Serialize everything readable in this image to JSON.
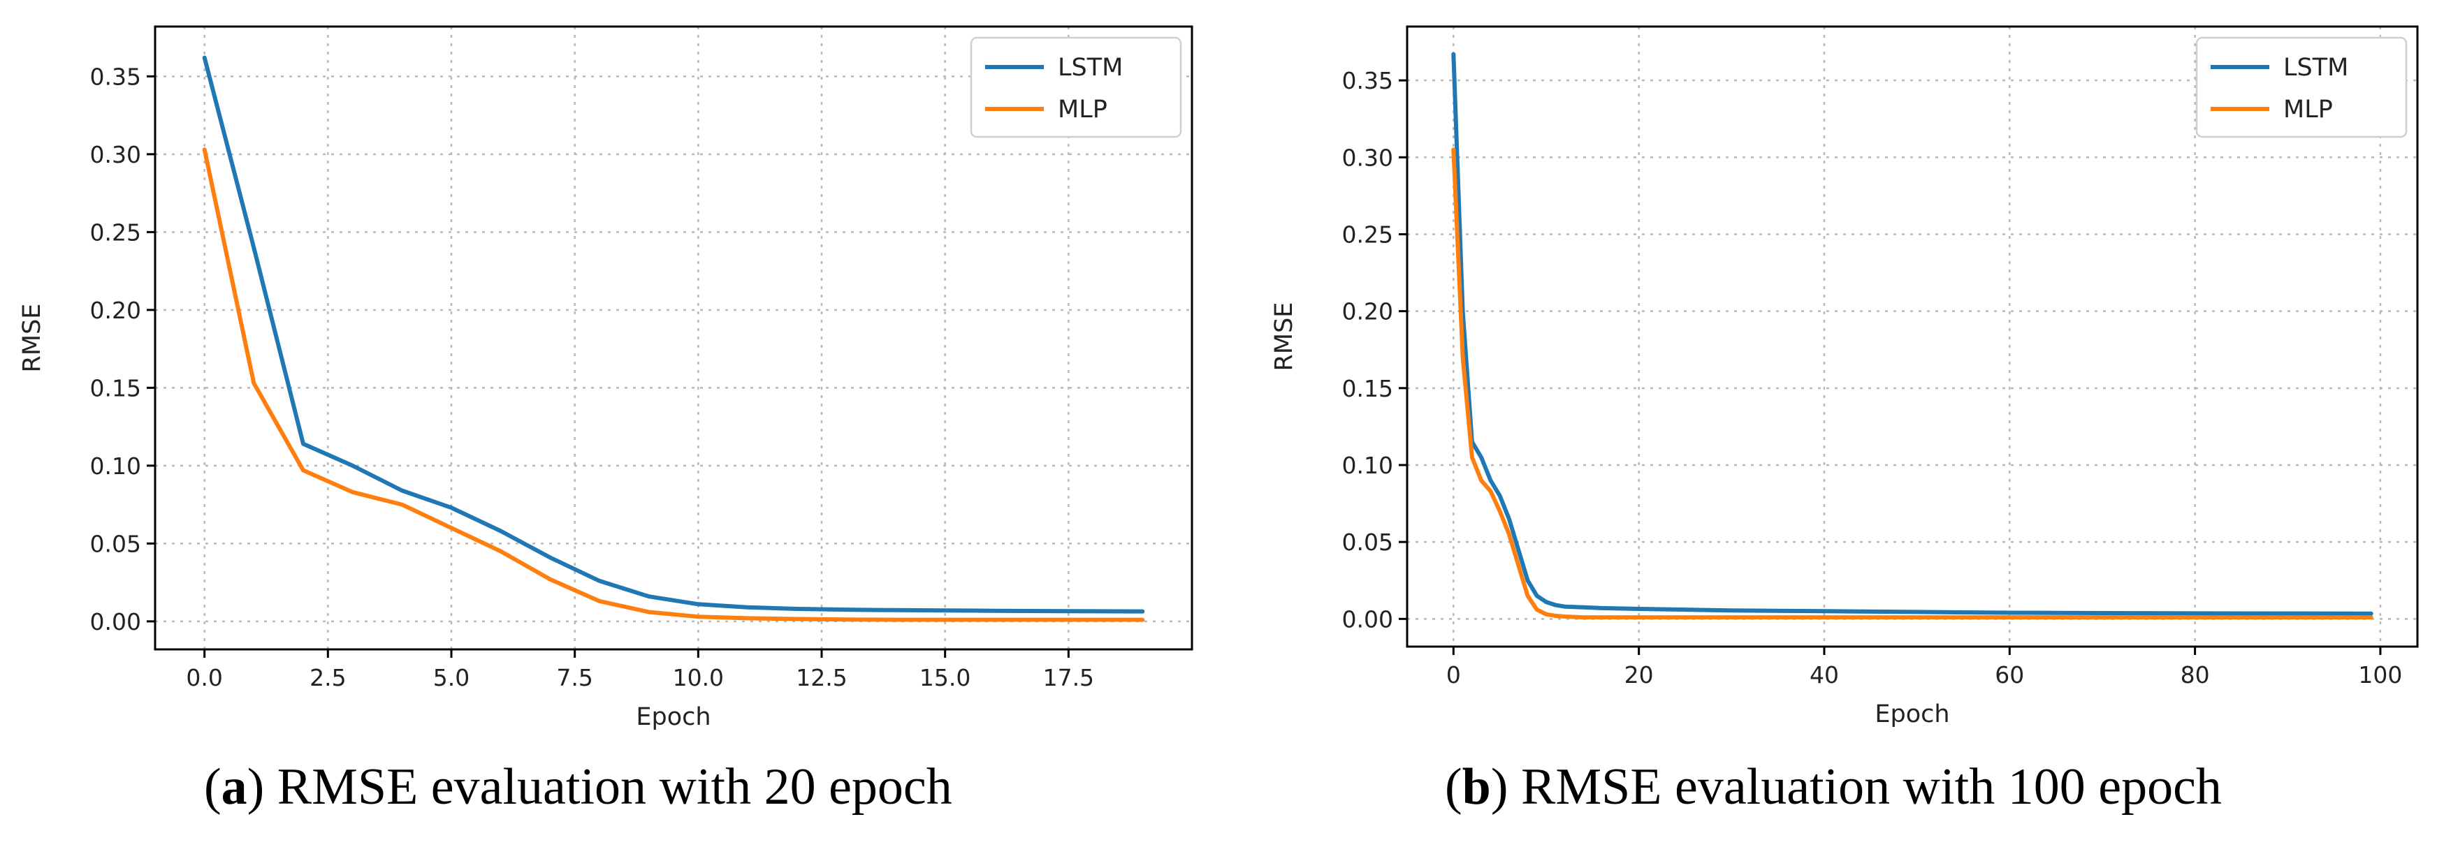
{
  "chart_data": [
    {
      "type": "line",
      "title": "",
      "xlabel": "Epoch",
      "ylabel": "RMSE",
      "xlim": [
        -1,
        20
      ],
      "ylim": [
        -0.018,
        0.382
      ],
      "grid": true,
      "legend": "top-right",
      "x_ticks": [
        0.0,
        2.5,
        5.0,
        7.5,
        10.0,
        12.5,
        15.0,
        17.5
      ],
      "x_tick_labels": [
        "0.0",
        "2.5",
        "5.0",
        "7.5",
        "10.0",
        "12.5",
        "15.0",
        "17.5"
      ],
      "y_ticks": [
        0.0,
        0.05,
        0.1,
        0.15,
        0.2,
        0.25,
        0.3,
        0.35
      ],
      "y_tick_labels": [
        "0.00",
        "0.05",
        "0.10",
        "0.15",
        "0.20",
        "0.25",
        "0.30",
        "0.35"
      ],
      "series": [
        {
          "name": "LSTM",
          "color": "#1f77b4",
          "x": [
            0,
            1,
            2,
            3,
            4,
            5,
            6,
            7,
            8,
            9,
            10,
            11,
            12,
            13,
            14,
            15,
            16,
            17,
            18,
            19
          ],
          "values": [
            0.362,
            0.24,
            0.114,
            0.1,
            0.084,
            0.073,
            0.058,
            0.041,
            0.026,
            0.016,
            0.011,
            0.009,
            0.008,
            0.0075,
            0.0072,
            0.007,
            0.0068,
            0.0066,
            0.0065,
            0.0064
          ]
        },
        {
          "name": "MLP",
          "color": "#ff7f0e",
          "x": [
            0,
            1,
            2,
            3,
            4,
            5,
            6,
            7,
            8,
            9,
            10,
            11,
            12,
            13,
            14,
            15,
            16,
            17,
            18,
            19
          ],
          "values": [
            0.303,
            0.153,
            0.097,
            0.083,
            0.075,
            0.06,
            0.045,
            0.027,
            0.013,
            0.006,
            0.003,
            0.002,
            0.0015,
            0.0012,
            0.001,
            0.001,
            0.001,
            0.001,
            0.001,
            0.001
          ]
        }
      ]
    },
    {
      "type": "line",
      "title": "",
      "xlabel": "Epoch",
      "ylabel": "RMSE",
      "xlim": [
        -5,
        104
      ],
      "ylim": [
        -0.018,
        0.385
      ],
      "grid": true,
      "legend": "top-right",
      "x_ticks": [
        0,
        20,
        40,
        60,
        80,
        100
      ],
      "x_tick_labels": [
        "0",
        "20",
        "40",
        "60",
        "80",
        "100"
      ],
      "y_ticks": [
        0.0,
        0.05,
        0.1,
        0.15,
        0.2,
        0.25,
        0.3,
        0.35
      ],
      "y_tick_labels": [
        "0.00",
        "0.05",
        "0.10",
        "0.15",
        "0.20",
        "0.25",
        "0.30",
        "0.35"
      ],
      "series": [
        {
          "name": "LSTM",
          "color": "#1f77b4",
          "x": [
            0,
            1,
            2,
            3,
            4,
            5,
            6,
            7,
            8,
            9,
            10,
            11,
            12,
            14,
            16,
            20,
            30,
            40,
            50,
            60,
            70,
            80,
            90,
            99
          ],
          "values": [
            0.367,
            0.2,
            0.115,
            0.105,
            0.09,
            0.08,
            0.065,
            0.045,
            0.025,
            0.015,
            0.011,
            0.009,
            0.008,
            0.0075,
            0.007,
            0.0065,
            0.0055,
            0.005,
            0.0045,
            0.004,
            0.0038,
            0.0036,
            0.0035,
            0.0034
          ]
        },
        {
          "name": "MLP",
          "color": "#ff7f0e",
          "x": [
            0,
            1,
            2,
            3,
            4,
            5,
            6,
            7,
            8,
            9,
            10,
            11,
            12,
            14,
            16,
            20,
            30,
            40,
            50,
            60,
            70,
            80,
            90,
            99
          ],
          "values": [
            0.305,
            0.17,
            0.105,
            0.09,
            0.083,
            0.07,
            0.055,
            0.035,
            0.015,
            0.006,
            0.003,
            0.002,
            0.0015,
            0.001,
            0.001,
            0.001,
            0.001,
            0.001,
            0.001,
            0.001,
            0.001,
            0.001,
            0.001,
            0.001
          ]
        }
      ]
    }
  ],
  "captions": [
    {
      "letter": "a",
      "text": ") RMSE evaluation with 20 epoch"
    },
    {
      "letter": "b",
      "text": ") RMSE evaluation with 100 epoch"
    }
  ]
}
